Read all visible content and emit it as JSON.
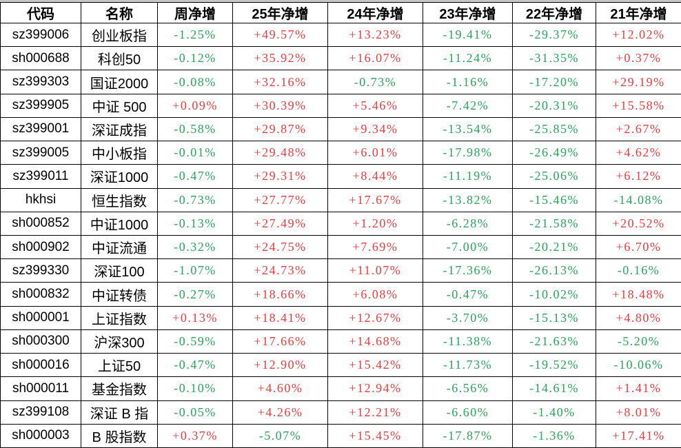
{
  "chart_data": {
    "type": "table",
    "columns": [
      "代码",
      "名称",
      "周净增",
      "25年净增",
      "24年净增",
      "23年净增",
      "22年净增",
      "21年净增"
    ],
    "rows": [
      [
        "sz399006",
        "创业板指",
        "-1.25%",
        "+49.57%",
        "+13.23%",
        "-19.41%",
        "-29.37%",
        "+12.02%"
      ],
      [
        "sh000688",
        "科创50",
        "-0.12%",
        "+35.92%",
        "+16.07%",
        "-11.24%",
        "-31.35%",
        "+0.37%"
      ],
      [
        "sz399303",
        "国证2000",
        "-0.08%",
        "+32.16%",
        "-0.73%",
        "-1.16%",
        "-17.20%",
        "+29.19%"
      ],
      [
        "sz399905",
        "中证 500",
        "+0.09%",
        "+30.39%",
        "+5.46%",
        "-7.42%",
        "-20.31%",
        "+15.58%"
      ],
      [
        "sz399001",
        "深证成指",
        "-0.58%",
        "+29.87%",
        "+9.34%",
        "-13.54%",
        "-25.85%",
        "+2.67%"
      ],
      [
        "sz399005",
        "中小板指",
        "-0.01%",
        "+29.48%",
        "+6.01%",
        "-17.98%",
        "-26.49%",
        "+4.62%"
      ],
      [
        "sz399011",
        "深证1000",
        "-0.47%",
        "+29.31%",
        "+8.44%",
        "-11.19%",
        "-25.06%",
        "+6.12%"
      ],
      [
        "hkhsi",
        "恒生指数",
        "-0.73%",
        "+27.77%",
        "+17.67%",
        "-13.82%",
        "-15.46%",
        "-14.08%"
      ],
      [
        "sh000852",
        "中证1000",
        "-0.13%",
        "+27.49%",
        "+1.20%",
        "-6.28%",
        "-21.58%",
        "+20.52%"
      ],
      [
        "sh000902",
        "中证流通",
        "-0.32%",
        "+24.75%",
        "+7.69%",
        "-7.00%",
        "-20.21%",
        "+6.70%"
      ],
      [
        "sz399330",
        "深证100",
        "-1.07%",
        "+24.73%",
        "+11.07%",
        "-17.36%",
        "-26.13%",
        "-0.16%"
      ],
      [
        "sh000832",
        "中证转债",
        "-0.27%",
        "+18.66%",
        "+6.08%",
        "-0.47%",
        "-10.02%",
        "+18.48%"
      ],
      [
        "sh000001",
        "上证指数",
        "+0.13%",
        "+18.41%",
        "+12.67%",
        "-3.70%",
        "-15.13%",
        "+4.80%"
      ],
      [
        "sh000300",
        "沪深300",
        "-0.59%",
        "+17.66%",
        "+14.68%",
        "-11.38%",
        "-21.63%",
        "-5.20%"
      ],
      [
        "sh000016",
        "上证50",
        "-0.47%",
        "+12.90%",
        "+15.42%",
        "-11.73%",
        "-19.52%",
        "-10.06%"
      ],
      [
        "sh000011",
        "基金指数",
        "-0.10%",
        "+4.60%",
        "+12.94%",
        "-6.56%",
        "-14.61%",
        "+1.41%"
      ],
      [
        "sz399108",
        "深证 B 指",
        "-0.05%",
        "+4.26%",
        "+12.21%",
        "-6.60%",
        "-1.40%",
        "+8.01%"
      ],
      [
        "sh000003",
        "B 股指数",
        "+0.37%",
        "-5.07%",
        "+15.45%",
        "-17.87%",
        "-1.36%",
        "+17.41%"
      ]
    ],
    "column_keys": [
      "code",
      "name",
      "week",
      "25y",
      "24y",
      "23y",
      "22y",
      "21y"
    ],
    "grid": "on",
    "value_color_rule": "plus-prefix = gain (red), minus-prefix = loss (green)"
  },
  "colors": {
    "gain": "#ee3a3c",
    "loss": "#28a45a",
    "grid": "#000000",
    "text": "#000000",
    "background": "#ffffff",
    "top_strip": "#c6c6c6"
  }
}
